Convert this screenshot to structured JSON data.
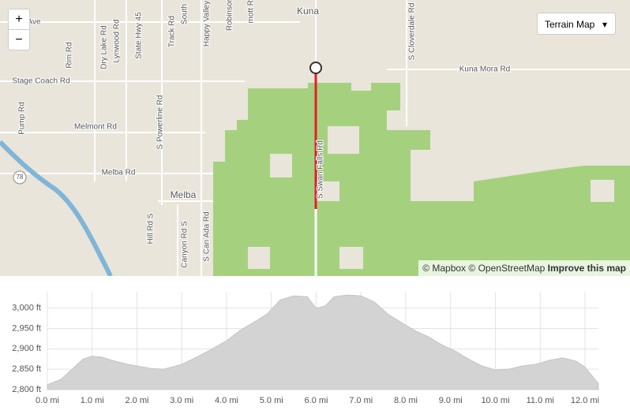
{
  "map": {
    "labels": [
      "Kuna",
      "Kuna Mora Rd",
      "Stage Coach Rd",
      "Melmont Rd",
      "Melba Rd",
      "Melba",
      "Pump Rd",
      "Rim Rd",
      "Dry Lake Rd",
      "Lynwood Rd",
      "State Hwy 45",
      "Track Rd",
      "South",
      "Happy Valley",
      "Robinson",
      "mott Rd",
      "S Swan Falls Rd",
      "S Cloverdale Rd",
      "S Powerline Rd",
      "Hill Rd S",
      "Canyon Rd S",
      "S Can Ada Rd",
      "Ave",
      "78"
    ],
    "zoom_in": "+",
    "zoom_out": "−",
    "layer_button": "Terrain Map",
    "attribution": [
      "© Mapbox",
      "© OpenStreetMap",
      "Improve this map"
    ]
  },
  "chart_data": {
    "type": "area",
    "color": "#d3d3d3",
    "x": [
      0,
      0.3,
      0.6,
      0.8,
      1.0,
      1.2,
      1.5,
      1.8,
      2.0,
      2.3,
      2.6,
      2.8,
      3.0,
      3.3,
      3.6,
      4.0,
      4.3,
      4.6,
      4.9,
      5.2,
      5.5,
      5.8,
      6.0,
      6.2,
      6.4,
      6.7,
      7.0,
      7.3,
      7.6,
      7.9,
      8.2,
      8.5,
      8.8,
      9.1,
      9.4,
      9.7,
      10.0,
      10.3,
      10.6,
      10.9,
      11.2,
      11.5,
      11.8,
      12.0,
      12.3
    ],
    "values": [
      2812,
      2825,
      2855,
      2875,
      2882,
      2880,
      2870,
      2862,
      2858,
      2852,
      2850,
      2856,
      2862,
      2878,
      2895,
      2920,
      2945,
      2965,
      2985,
      3020,
      3030,
      3028,
      3000,
      3005,
      3028,
      3032,
      3030,
      3015,
      2985,
      2965,
      2945,
      2930,
      2910,
      2895,
      2875,
      2858,
      2848,
      2850,
      2858,
      2862,
      2872,
      2878,
      2870,
      2855,
      2815
    ],
    "xlim": [
      0,
      12.3
    ],
    "ylim": [
      2800,
      3040
    ],
    "xticks": [
      {
        "value": 0,
        "label": "0.0 mi"
      },
      {
        "value": 1,
        "label": "1.0 mi"
      },
      {
        "value": 2,
        "label": "2.0 mi"
      },
      {
        "value": 3,
        "label": "3.0 mi"
      },
      {
        "value": 4,
        "label": "4.0 mi"
      },
      {
        "value": 5,
        "label": "5.0 mi"
      },
      {
        "value": 6,
        "label": "6.0 mi"
      },
      {
        "value": 7,
        "label": "7.0 mi"
      },
      {
        "value": 8,
        "label": "8.0 mi"
      },
      {
        "value": 9,
        "label": "9.0 mi"
      },
      {
        "value": 10,
        "label": "10.0 mi"
      },
      {
        "value": 11,
        "label": "11.0 mi"
      },
      {
        "value": 12,
        "label": "12.0 mi"
      }
    ],
    "yticks": [
      {
        "value": 2800,
        "label": "2,800 ft"
      },
      {
        "value": 2850,
        "label": "2,850 ft"
      },
      {
        "value": 2900,
        "label": "2,900 ft"
      },
      {
        "value": 2950,
        "label": "2,950 ft"
      },
      {
        "value": 3000,
        "label": "3,000 ft"
      }
    ],
    "grid": true
  }
}
